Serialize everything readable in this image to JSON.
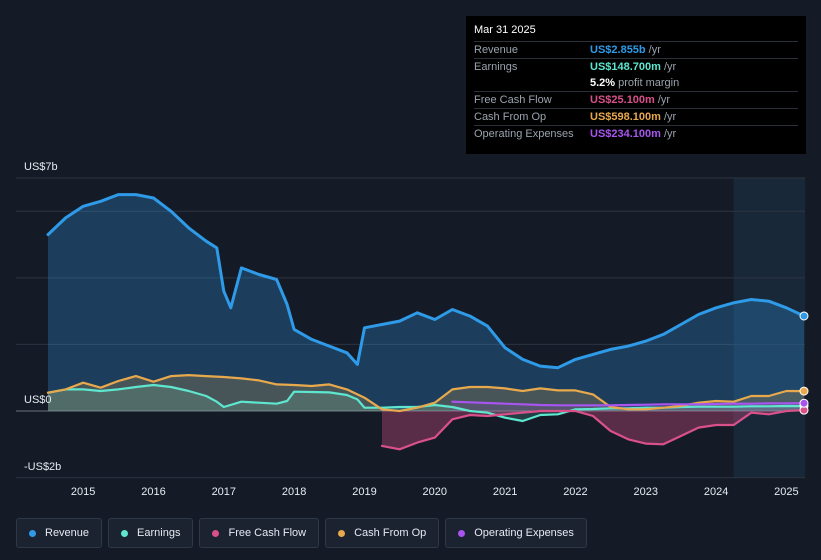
{
  "tooltip": {
    "date": "Mar 31 2025",
    "rows": [
      {
        "label": "Revenue",
        "value": "US$2.855b",
        "suffix": "/yr",
        "color": "#2f9be8"
      },
      {
        "label": "Earnings",
        "value": "US$148.700m",
        "suffix": "/yr",
        "color": "#5ee6cf"
      },
      {
        "label": "",
        "value": "5.2%",
        "suffix": "profit margin",
        "color": "#ffffff"
      },
      {
        "label": "Free Cash Flow",
        "value": "US$25.100m",
        "suffix": "/yr",
        "color": "#d9508a"
      },
      {
        "label": "Cash From Op",
        "value": "US$598.100m",
        "suffix": "/yr",
        "color": "#e8a94d"
      },
      {
        "label": "Operating Expenses",
        "value": "US$234.100m",
        "suffix": "/yr",
        "color": "#a855f0"
      }
    ]
  },
  "legend": [
    {
      "label": "Revenue",
      "color": "#2f9be8"
    },
    {
      "label": "Earnings",
      "color": "#5ee6cf"
    },
    {
      "label": "Free Cash Flow",
      "color": "#d9508a"
    },
    {
      "label": "Cash From Op",
      "color": "#e8a94d"
    },
    {
      "label": "Operating Expenses",
      "color": "#a855f0"
    }
  ],
  "chart_data": {
    "type": "area",
    "y_tick_labels": [
      "US$7b",
      "US$0",
      "-US$2b"
    ],
    "ylim": [
      -2,
      7
    ],
    "xlim": [
      2014.5,
      2025.25
    ],
    "x_tick_labels": [
      "2015",
      "2016",
      "2017",
      "2018",
      "2019",
      "2020",
      "2021",
      "2022",
      "2023",
      "2024",
      "2025"
    ],
    "highlight_start": 2024.25,
    "series": [
      {
        "name": "Revenue",
        "color": "#2f9be8",
        "points": [
          [
            2014.5,
            5.3
          ],
          [
            2014.75,
            5.8
          ],
          [
            2015,
            6.15
          ],
          [
            2015.25,
            6.3
          ],
          [
            2015.5,
            6.5
          ],
          [
            2015.75,
            6.5
          ],
          [
            2016,
            6.4
          ],
          [
            2016.25,
            6.0
          ],
          [
            2016.5,
            5.5
          ],
          [
            2016.75,
            5.1
          ],
          [
            2016.9,
            4.9
          ],
          [
            2017,
            3.6
          ],
          [
            2017.1,
            3.1
          ],
          [
            2017.25,
            4.3
          ],
          [
            2017.5,
            4.1
          ],
          [
            2017.75,
            3.95
          ],
          [
            2017.9,
            3.2
          ],
          [
            2018,
            2.45
          ],
          [
            2018.25,
            2.15
          ],
          [
            2018.5,
            1.95
          ],
          [
            2018.75,
            1.75
          ],
          [
            2018.9,
            1.4
          ],
          [
            2019,
            2.5
          ],
          [
            2019.25,
            2.6
          ],
          [
            2019.5,
            2.7
          ],
          [
            2019.75,
            2.95
          ],
          [
            2020,
            2.75
          ],
          [
            2020.25,
            3.05
          ],
          [
            2020.5,
            2.85
          ],
          [
            2020.75,
            2.55
          ],
          [
            2021,
            1.9
          ],
          [
            2021.25,
            1.55
          ],
          [
            2021.5,
            1.35
          ],
          [
            2021.75,
            1.3
          ],
          [
            2022,
            1.55
          ],
          [
            2022.25,
            1.7
          ],
          [
            2022.5,
            1.85
          ],
          [
            2022.75,
            1.95
          ],
          [
            2023,
            2.1
          ],
          [
            2023.25,
            2.3
          ],
          [
            2023.5,
            2.6
          ],
          [
            2023.75,
            2.9
          ],
          [
            2024,
            3.1
          ],
          [
            2024.25,
            3.25
          ],
          [
            2024.5,
            3.35
          ],
          [
            2024.75,
            3.3
          ],
          [
            2025,
            3.1
          ],
          [
            2025.25,
            2.855
          ]
        ]
      },
      {
        "name": "Earnings",
        "color": "#5ee6cf",
        "points": [
          [
            2014.5,
            0.55
          ],
          [
            2014.75,
            0.65
          ],
          [
            2015,
            0.65
          ],
          [
            2015.25,
            0.6
          ],
          [
            2015.5,
            0.65
          ],
          [
            2015.75,
            0.72
          ],
          [
            2016,
            0.78
          ],
          [
            2016.25,
            0.72
          ],
          [
            2016.5,
            0.6
          ],
          [
            2016.75,
            0.45
          ],
          [
            2016.9,
            0.28
          ],
          [
            2017,
            0.12
          ],
          [
            2017.25,
            0.28
          ],
          [
            2017.5,
            0.25
          ],
          [
            2017.75,
            0.22
          ],
          [
            2017.9,
            0.3
          ],
          [
            2018,
            0.58
          ],
          [
            2018.25,
            0.57
          ],
          [
            2018.5,
            0.56
          ],
          [
            2018.75,
            0.48
          ],
          [
            2018.9,
            0.35
          ],
          [
            2019,
            0.1
          ],
          [
            2019.25,
            0.1
          ],
          [
            2019.5,
            0.12
          ],
          [
            2019.75,
            0.12
          ],
          [
            2020,
            0.18
          ],
          [
            2020.25,
            0.12
          ],
          [
            2020.5,
            0.0
          ],
          [
            2020.75,
            -0.05
          ],
          [
            2021,
            -0.2
          ],
          [
            2021.25,
            -0.3
          ],
          [
            2021.5,
            -0.12
          ],
          [
            2021.75,
            -0.1
          ],
          [
            2022,
            0.05
          ],
          [
            2022.25,
            0.06
          ],
          [
            2022.5,
            0.08
          ],
          [
            2022.75,
            0.08
          ],
          [
            2023,
            0.1
          ],
          [
            2023.25,
            0.1
          ],
          [
            2023.5,
            0.12
          ],
          [
            2023.75,
            0.13
          ],
          [
            2024,
            0.13
          ],
          [
            2024.25,
            0.13
          ],
          [
            2024.5,
            0.14
          ],
          [
            2024.75,
            0.14
          ],
          [
            2025,
            0.15
          ],
          [
            2025.25,
            0.1487
          ]
        ]
      },
      {
        "name": "Free Cash Flow",
        "color": "#d9508a",
        "points": [
          [
            2019.25,
            -1.05
          ],
          [
            2019.5,
            -1.15
          ],
          [
            2019.75,
            -0.95
          ],
          [
            2020,
            -0.8
          ],
          [
            2020.25,
            -0.25
          ],
          [
            2020.5,
            -0.12
          ],
          [
            2020.75,
            -0.15
          ],
          [
            2021,
            -0.1
          ],
          [
            2021.25,
            -0.05
          ],
          [
            2021.5,
            0.0
          ],
          [
            2021.75,
            0.0
          ],
          [
            2022,
            0.0
          ],
          [
            2022.25,
            -0.15
          ],
          [
            2022.5,
            -0.6
          ],
          [
            2022.75,
            -0.85
          ],
          [
            2023,
            -0.98
          ],
          [
            2023.25,
            -1.0
          ],
          [
            2023.5,
            -0.75
          ],
          [
            2023.75,
            -0.5
          ],
          [
            2024,
            -0.42
          ],
          [
            2024.25,
            -0.42
          ],
          [
            2024.5,
            -0.05
          ],
          [
            2024.75,
            -0.1
          ],
          [
            2025,
            0.0
          ],
          [
            2025.25,
            0.0251
          ]
        ]
      },
      {
        "name": "Cash From Op",
        "color": "#e8a94d",
        "points": [
          [
            2014.5,
            0.55
          ],
          [
            2014.75,
            0.65
          ],
          [
            2015,
            0.85
          ],
          [
            2015.25,
            0.7
          ],
          [
            2015.5,
            0.9
          ],
          [
            2015.75,
            1.05
          ],
          [
            2016,
            0.88
          ],
          [
            2016.25,
            1.05
          ],
          [
            2016.5,
            1.08
          ],
          [
            2016.75,
            1.05
          ],
          [
            2017,
            1.02
          ],
          [
            2017.25,
            0.98
          ],
          [
            2017.5,
            0.92
          ],
          [
            2017.75,
            0.8
          ],
          [
            2018,
            0.78
          ],
          [
            2018.25,
            0.75
          ],
          [
            2018.5,
            0.8
          ],
          [
            2018.75,
            0.65
          ],
          [
            2019,
            0.4
          ],
          [
            2019.25,
            0.05
          ],
          [
            2019.5,
            0.0
          ],
          [
            2019.75,
            0.1
          ],
          [
            2020,
            0.25
          ],
          [
            2020.25,
            0.65
          ],
          [
            2020.5,
            0.72
          ],
          [
            2020.75,
            0.72
          ],
          [
            2021,
            0.68
          ],
          [
            2021.25,
            0.6
          ],
          [
            2021.5,
            0.68
          ],
          [
            2021.75,
            0.62
          ],
          [
            2022,
            0.62
          ],
          [
            2022.25,
            0.5
          ],
          [
            2022.5,
            0.12
          ],
          [
            2022.75,
            0.05
          ],
          [
            2023,
            0.05
          ],
          [
            2023.25,
            0.1
          ],
          [
            2023.5,
            0.15
          ],
          [
            2023.75,
            0.25
          ],
          [
            2024,
            0.3
          ],
          [
            2024.25,
            0.28
          ],
          [
            2024.5,
            0.45
          ],
          [
            2024.75,
            0.45
          ],
          [
            2025,
            0.6
          ],
          [
            2025.25,
            0.5981
          ]
        ]
      },
      {
        "name": "Operating Expenses",
        "color": "#a855f0",
        "points": [
          [
            2020.25,
            0.28
          ],
          [
            2020.5,
            0.26
          ],
          [
            2020.75,
            0.24
          ],
          [
            2021,
            0.22
          ],
          [
            2021.25,
            0.2
          ],
          [
            2021.5,
            0.18
          ],
          [
            2021.75,
            0.17
          ],
          [
            2022,
            0.17
          ],
          [
            2022.25,
            0.17
          ],
          [
            2022.5,
            0.17
          ],
          [
            2022.75,
            0.18
          ],
          [
            2023,
            0.19
          ],
          [
            2023.25,
            0.2
          ],
          [
            2023.5,
            0.2
          ],
          [
            2023.75,
            0.2
          ],
          [
            2024,
            0.21
          ],
          [
            2024.25,
            0.22
          ],
          [
            2024.5,
            0.22
          ],
          [
            2024.75,
            0.23
          ],
          [
            2025,
            0.23
          ],
          [
            2025.25,
            0.2341
          ]
        ]
      }
    ]
  }
}
